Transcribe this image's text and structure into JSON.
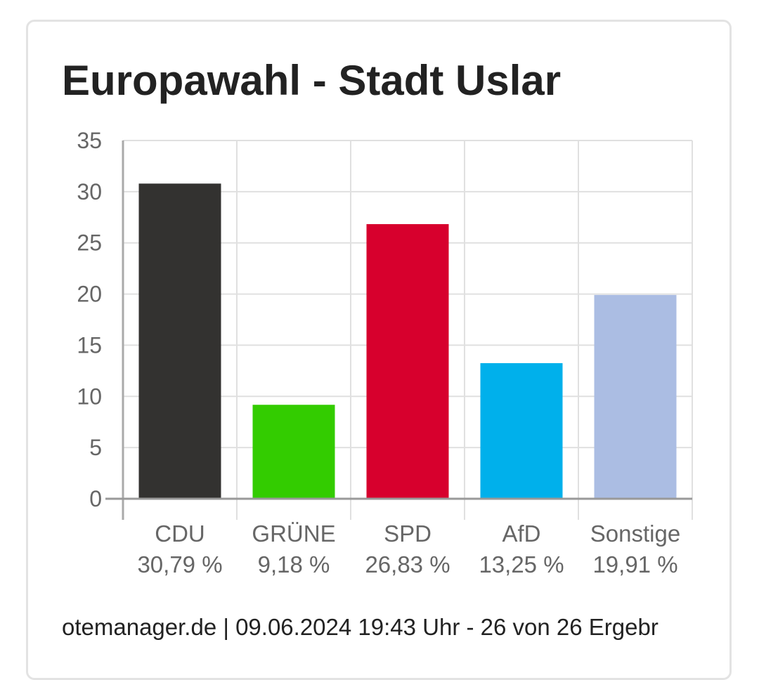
{
  "header": {
    "title": "Europawahl - Stadt Uslar"
  },
  "footer": {
    "text": "otemanager.de | 09.06.2024 19:43 Uhr - 26 von 26 Ergebr"
  },
  "chart_data": {
    "type": "bar",
    "title": "Europawahl - Stadt Uslar",
    "xlabel": "",
    "ylabel": "",
    "ylim": [
      0,
      35
    ],
    "yticks": [
      "0",
      "5",
      "10",
      "15",
      "20",
      "25",
      "30",
      "35"
    ],
    "grid": true,
    "legend": "none",
    "categories": [
      "CDU",
      "GRÜNE",
      "SPD",
      "AfD",
      "Sonstige"
    ],
    "value_labels": [
      "30,79 %",
      "9,18 %",
      "26,83 %",
      "13,25 %",
      "19,91 %"
    ],
    "values": [
      30.79,
      9.18,
      26.83,
      13.25,
      19.91
    ],
    "colors": [
      "#333230",
      "#33cc00",
      "#d7002d",
      "#00b0eb",
      "#abbde3"
    ]
  }
}
